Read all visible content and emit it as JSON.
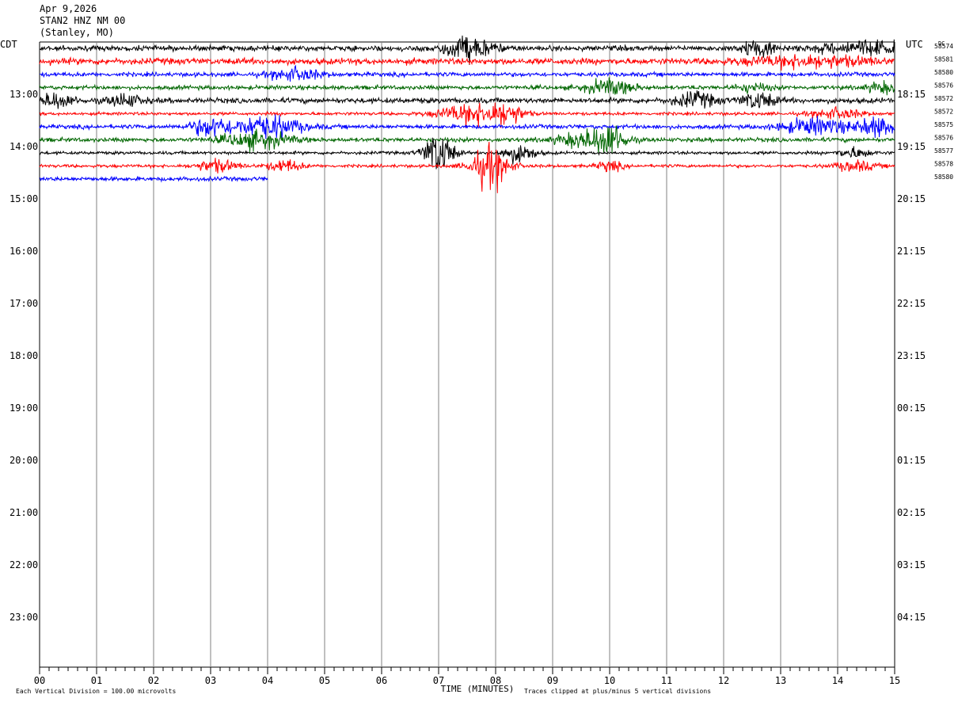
{
  "header": {
    "date": "Apr 9,2026",
    "station": "STAN2 HNZ NM 00",
    "location": "(Stanley, MO)"
  },
  "chart_data": {
    "type": "line",
    "subtype": "helicorder",
    "xlabel": "TIME (MINUTES)",
    "x_ticks": [
      "00",
      "01",
      "02",
      "03",
      "04",
      "05",
      "06",
      "07",
      "08",
      "09",
      "10",
      "11",
      "12",
      "13",
      "14",
      "15"
    ],
    "xlim": [
      0,
      15
    ],
    "left_axis_label": "CDT",
    "right_axis_label": "UTC",
    "dc_label": "DC",
    "left_hour_labels": [
      "13:00",
      "14:00",
      "15:00",
      "16:00",
      "17:00",
      "18:00",
      "19:00",
      "20:00",
      "21:00",
      "22:00",
      "23:00"
    ],
    "right_hour_labels": [
      "18:15",
      "19:15",
      "20:15",
      "21:15",
      "22:15",
      "23:15",
      "00:15",
      "01:15",
      "02:15",
      "03:15",
      "04:15"
    ],
    "lines_per_hour": 4,
    "first_hour_line_index": 4,
    "total_line_slots": 48,
    "trace_colors": [
      "#000000",
      "#ff0000",
      "#0000ff",
      "#006600"
    ],
    "dc_offsets": [
      "58574",
      "58581",
      "58580",
      "58576",
      "58572",
      "58572",
      "58575",
      "58576",
      "58577",
      "58578",
      "58580"
    ],
    "traces": [
      {
        "color": "#000000",
        "amplitude": 5,
        "minutes_recorded": 15,
        "events": [
          {
            "minute": 7.5,
            "amp": 22,
            "width": 0.6
          },
          {
            "minute": 12.6,
            "amp": 16,
            "width": 0.4
          },
          {
            "minute": 14.5,
            "amp": 12,
            "width": 1.2
          }
        ]
      },
      {
        "color": "#ff0000",
        "amplitude": 6,
        "minutes_recorded": 15,
        "events": [
          {
            "minute": 13.5,
            "amp": 10,
            "width": 1.5
          }
        ]
      },
      {
        "color": "#0000ff",
        "amplitude": 4,
        "minutes_recorded": 15,
        "events": [
          {
            "minute": 4.5,
            "amp": 12,
            "width": 0.6
          }
        ]
      },
      {
        "color": "#006600",
        "amplitude": 4,
        "minutes_recorded": 15,
        "events": [
          {
            "minute": 10.0,
            "amp": 14,
            "width": 0.6
          },
          {
            "minute": 12.5,
            "amp": 8,
            "width": 0.4
          },
          {
            "minute": 14.8,
            "amp": 10,
            "width": 0.4
          }
        ]
      },
      {
        "color": "#000000",
        "amplitude": 5,
        "minutes_recorded": 15,
        "events": [
          {
            "minute": 0.3,
            "amp": 14,
            "width": 0.4
          },
          {
            "minute": 1.5,
            "amp": 12,
            "width": 0.4
          },
          {
            "minute": 11.5,
            "amp": 14,
            "width": 0.5
          },
          {
            "minute": 12.6,
            "amp": 16,
            "width": 0.4
          }
        ]
      },
      {
        "color": "#ff0000",
        "amplitude": 3,
        "minutes_recorded": 15,
        "events": [
          {
            "minute": 7.6,
            "amp": 20,
            "width": 0.8
          },
          {
            "minute": 8.2,
            "amp": 18,
            "width": 0.4
          },
          {
            "minute": 14.0,
            "amp": 10,
            "width": 0.6
          }
        ]
      },
      {
        "color": "#0000ff",
        "amplitude": 4,
        "minutes_recorded": 15,
        "events": [
          {
            "minute": 3.0,
            "amp": 18,
            "width": 0.5
          },
          {
            "minute": 4.0,
            "amp": 22,
            "width": 0.8
          },
          {
            "minute": 13.6,
            "amp": 16,
            "width": 0.8
          },
          {
            "minute": 14.7,
            "amp": 18,
            "width": 0.5
          }
        ]
      },
      {
        "color": "#006600",
        "amplitude": 4,
        "minutes_recorded": 15,
        "events": [
          {
            "minute": 3.8,
            "amp": 16,
            "width": 0.8
          },
          {
            "minute": 9.5,
            "amp": 14,
            "width": 0.6
          },
          {
            "minute": 10.0,
            "amp": 30,
            "width": 0.4
          }
        ]
      },
      {
        "color": "#000000",
        "amplitude": 3,
        "minutes_recorded": 15,
        "events": [
          {
            "minute": 7.0,
            "amp": 42,
            "width": 0.35
          },
          {
            "minute": 8.4,
            "amp": 18,
            "width": 0.4
          },
          {
            "minute": 14.3,
            "amp": 10,
            "width": 0.4
          }
        ]
      },
      {
        "color": "#ff0000",
        "amplitude": 3,
        "minutes_recorded": 15,
        "events": [
          {
            "minute": 3.1,
            "amp": 12,
            "width": 0.5
          },
          {
            "minute": 4.3,
            "amp": 12,
            "width": 0.4
          },
          {
            "minute": 7.9,
            "amp": 40,
            "width": 0.45
          },
          {
            "minute": 10.0,
            "amp": 10,
            "width": 0.3
          },
          {
            "minute": 14.3,
            "amp": 10,
            "width": 0.5
          }
        ]
      },
      {
        "color": "#0000ff",
        "amplitude": 4,
        "minutes_recorded": 4,
        "events": []
      }
    ],
    "footer_left": "Each Vertical Division = 100.00 microvolts",
    "footer_right": "Traces clipped at plus/minus 5 vertical divisions"
  }
}
